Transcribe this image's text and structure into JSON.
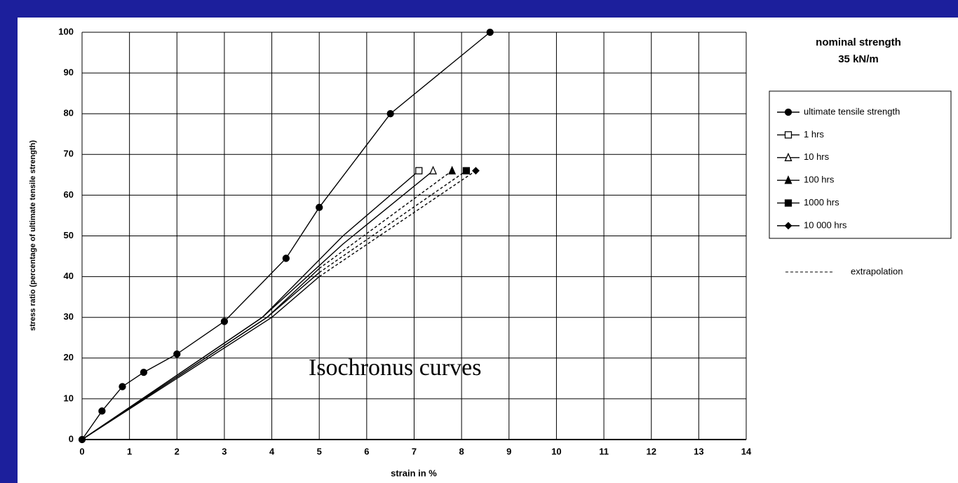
{
  "chart_data": {
    "type": "line",
    "title": "nominal strength",
    "subtitle": "35 kN/m",
    "x_label": "strain in %",
    "y_label": "stress ratio (percentage of ultimate tensile strength)",
    "annotation": "Isochronus curves",
    "extrapolation_label": "extrapolation",
    "xlim": [
      0,
      14
    ],
    "ylim": [
      0,
      100
    ],
    "xticks": [
      0,
      1,
      2,
      3,
      4,
      5,
      6,
      7,
      8,
      9,
      10,
      11,
      12,
      13,
      14
    ],
    "yticks": [
      0,
      10,
      20,
      30,
      40,
      50,
      60,
      70,
      80,
      90,
      100
    ],
    "grid": true,
    "legend": "right",
    "series": [
      {
        "name": "ultimate tensile strength",
        "color": "#000000",
        "marker": "circle",
        "markers": "all",
        "x": [
          0,
          0.42,
          0.85,
          1.3,
          2,
          3,
          4.3,
          5,
          6.5,
          8.6
        ],
        "values": [
          0,
          7,
          13,
          16.5,
          21,
          29,
          44.5,
          57,
          80,
          100
        ]
      },
      {
        "name": "1 hrs",
        "color": "#000000",
        "marker": "square-open",
        "markers": "last",
        "x": [
          0,
          3.8,
          5.5,
          7.1
        ],
        "values": [
          0,
          30,
          50,
          66
        ]
      },
      {
        "name": "10 hrs",
        "color": "#000000",
        "marker": "triangle-open",
        "markers": "last",
        "x": [
          0,
          3.8,
          5.5,
          7.4
        ],
        "values": [
          0,
          30,
          48,
          66
        ]
      },
      {
        "name": "100 hrs",
        "color": "#000000",
        "marker": "triangle",
        "markers": "last",
        "dashed_from": 2,
        "x": [
          0,
          3.9,
          5,
          7.8
        ],
        "values": [
          0,
          30,
          42,
          66
        ]
      },
      {
        "name": "1000 hrs",
        "color": "#000000",
        "marker": "square",
        "markers": "last",
        "dashed_from": 2,
        "x": [
          0,
          3.9,
          5,
          8.1
        ],
        "values": [
          0,
          30,
          41,
          66
        ]
      },
      {
        "name": "10 000 hrs",
        "color": "#000000",
        "marker": "diamond",
        "markers": "last",
        "dashed_from": 2,
        "x": [
          0,
          4,
          5,
          8.3
        ],
        "values": [
          0,
          30,
          40,
          66
        ]
      }
    ]
  }
}
